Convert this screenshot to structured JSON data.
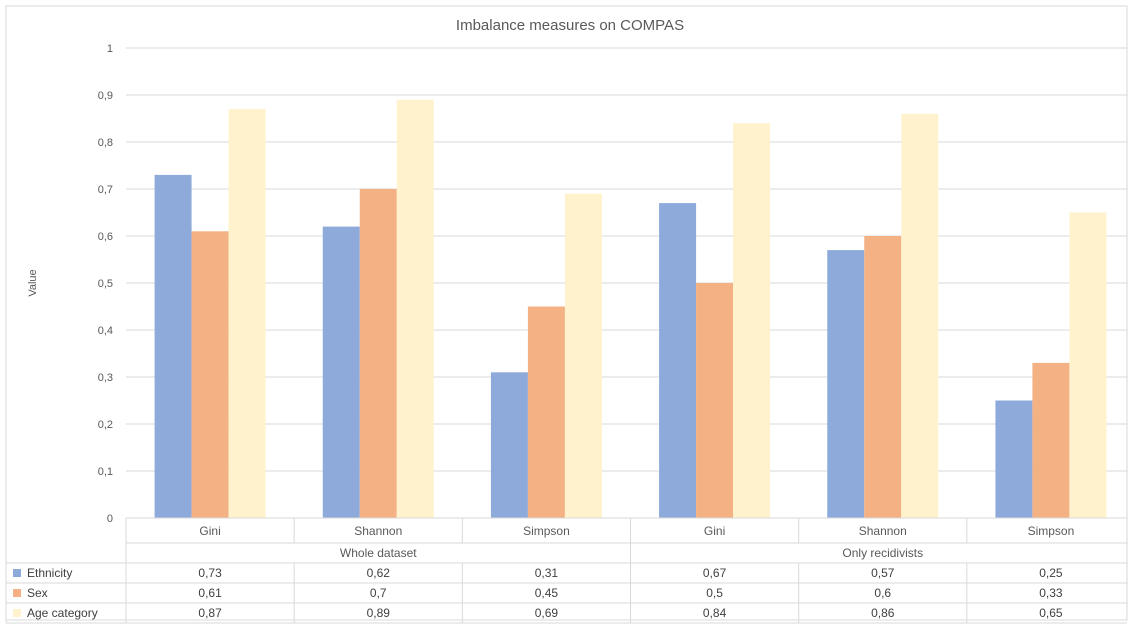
{
  "chart_data": {
    "type": "bar",
    "title": "Imbalance measures on COMPAS",
    "ylabel": "Value",
    "xlabel": "",
    "ylim": [
      0,
      1
    ],
    "ytick_step": 0.1,
    "ytick_labels": [
      "0",
      "0,1",
      "0,2",
      "0,3",
      "0,4",
      "0,5",
      "0,6",
      "0,7",
      "0,8",
      "0,9",
      "1"
    ],
    "categories": [
      "Gini",
      "Shannon",
      "Simpson",
      "Gini",
      "Shannon",
      "Simpson"
    ],
    "groups": [
      {
        "label": "Whole dataset",
        "span": 3
      },
      {
        "label": "Only recidivists",
        "span": 3
      }
    ],
    "series": [
      {
        "name": "Ethnicity",
        "color": "#8eaadb",
        "values": [
          0.73,
          0.62,
          0.31,
          0.67,
          0.57,
          0.25
        ],
        "labels": [
          "0,73",
          "0,62",
          "0,31",
          "0,67",
          "0,57",
          "0,25"
        ]
      },
      {
        "name": "Sex",
        "color": "#f4b183",
        "values": [
          0.61,
          0.7,
          0.45,
          0.5,
          0.6,
          0.33
        ],
        "labels": [
          "0,61",
          "0,7",
          "0,45",
          "0,5",
          "0,6",
          "0,33"
        ]
      },
      {
        "name": "Age category",
        "color": "#fff2cc",
        "values": [
          0.87,
          0.89,
          0.69,
          0.84,
          0.86,
          0.65
        ],
        "labels": [
          "0,87",
          "0,89",
          "0,69",
          "0,84",
          "0,86",
          "0,65"
        ]
      }
    ],
    "grid": true,
    "legend": "data-table-left"
  }
}
